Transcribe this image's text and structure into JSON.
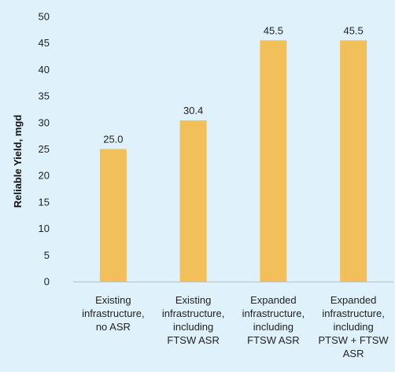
{
  "chart_data": {
    "type": "bar",
    "categories": [
      [
        "Existing",
        "infrastructure,",
        "no ASR"
      ],
      [
        "Existing",
        "infrastructure,",
        "including",
        "FTSW ASR"
      ],
      [
        "Expanded",
        "infrastructure,",
        "including",
        "FTSW ASR"
      ],
      [
        "Expanded",
        "infrastructure,",
        "including",
        "PTSW + FTSW",
        "ASR"
      ]
    ],
    "values": [
      25.0,
      30.4,
      45.5,
      45.5
    ],
    "data_labels": [
      "25.0",
      "30.4",
      "45.5",
      "45.5"
    ],
    "title": "",
    "xlabel": "",
    "ylabel": "Reliable Yield, mgd",
    "ylim": [
      0,
      50
    ],
    "yticks": [
      0,
      5,
      10,
      15,
      20,
      25,
      30,
      35,
      40,
      45,
      50
    ],
    "grid": false,
    "legend": "none",
    "colors": {
      "bar": "#f2c05a",
      "background": "#dff1fa",
      "axis": "#bfbfbf"
    }
  }
}
